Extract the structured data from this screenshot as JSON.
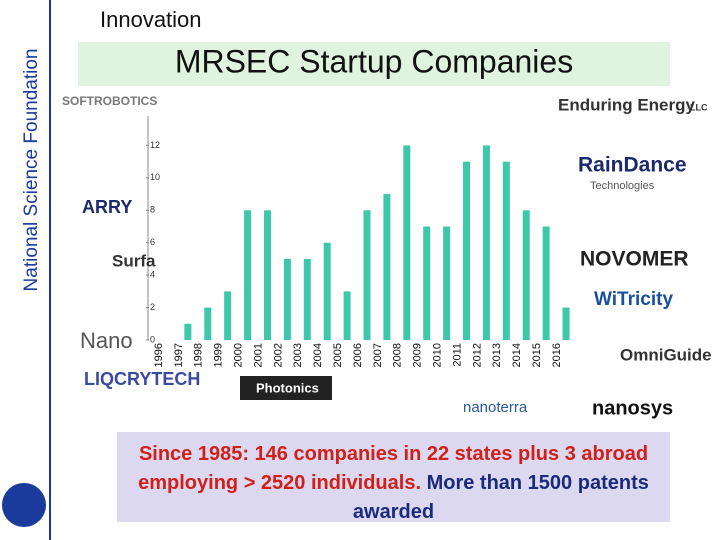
{
  "sidebar": "National Science Foundation",
  "section": "Innovation",
  "chart_data": {
    "type": "bar",
    "title": "MRSEC Startup Companies",
    "categories": [
      "1996",
      "1997",
      "1998",
      "1999",
      "2000",
      "2001",
      "2002",
      "2003",
      "2004",
      "2005",
      "2006",
      "2007",
      "2008",
      "2009",
      "2010",
      "2011",
      "2012",
      "2013",
      "2014",
      "2015",
      "2016"
    ],
    "values": [
      0,
      1,
      2,
      3,
      8,
      8,
      5,
      5,
      6,
      3,
      8,
      9,
      12,
      7,
      7,
      11,
      12,
      11,
      8,
      7,
      2
    ],
    "color": "#3dc9a9",
    "ylim": [
      0,
      14
    ],
    "yticks": [
      0,
      2,
      4,
      6,
      8,
      10,
      12
    ]
  },
  "logos": [
    "SOFTROBOTICS",
    "Enduring Energy",
    "LLC",
    "RainDance",
    "Technologies",
    "NOVOMER",
    "WiTricity",
    "OmniGuide",
    "nanosys",
    "nanoterra",
    "LIQCRYTECH",
    "Photonics",
    "Nano",
    "Surfa",
    "ARRY"
  ],
  "summary": {
    "part1": "Since 1985: 146 companies in 22 states plus 3 abroad employing > 2520 individuals.",
    "part2": "More than 1500 patents awarded"
  }
}
